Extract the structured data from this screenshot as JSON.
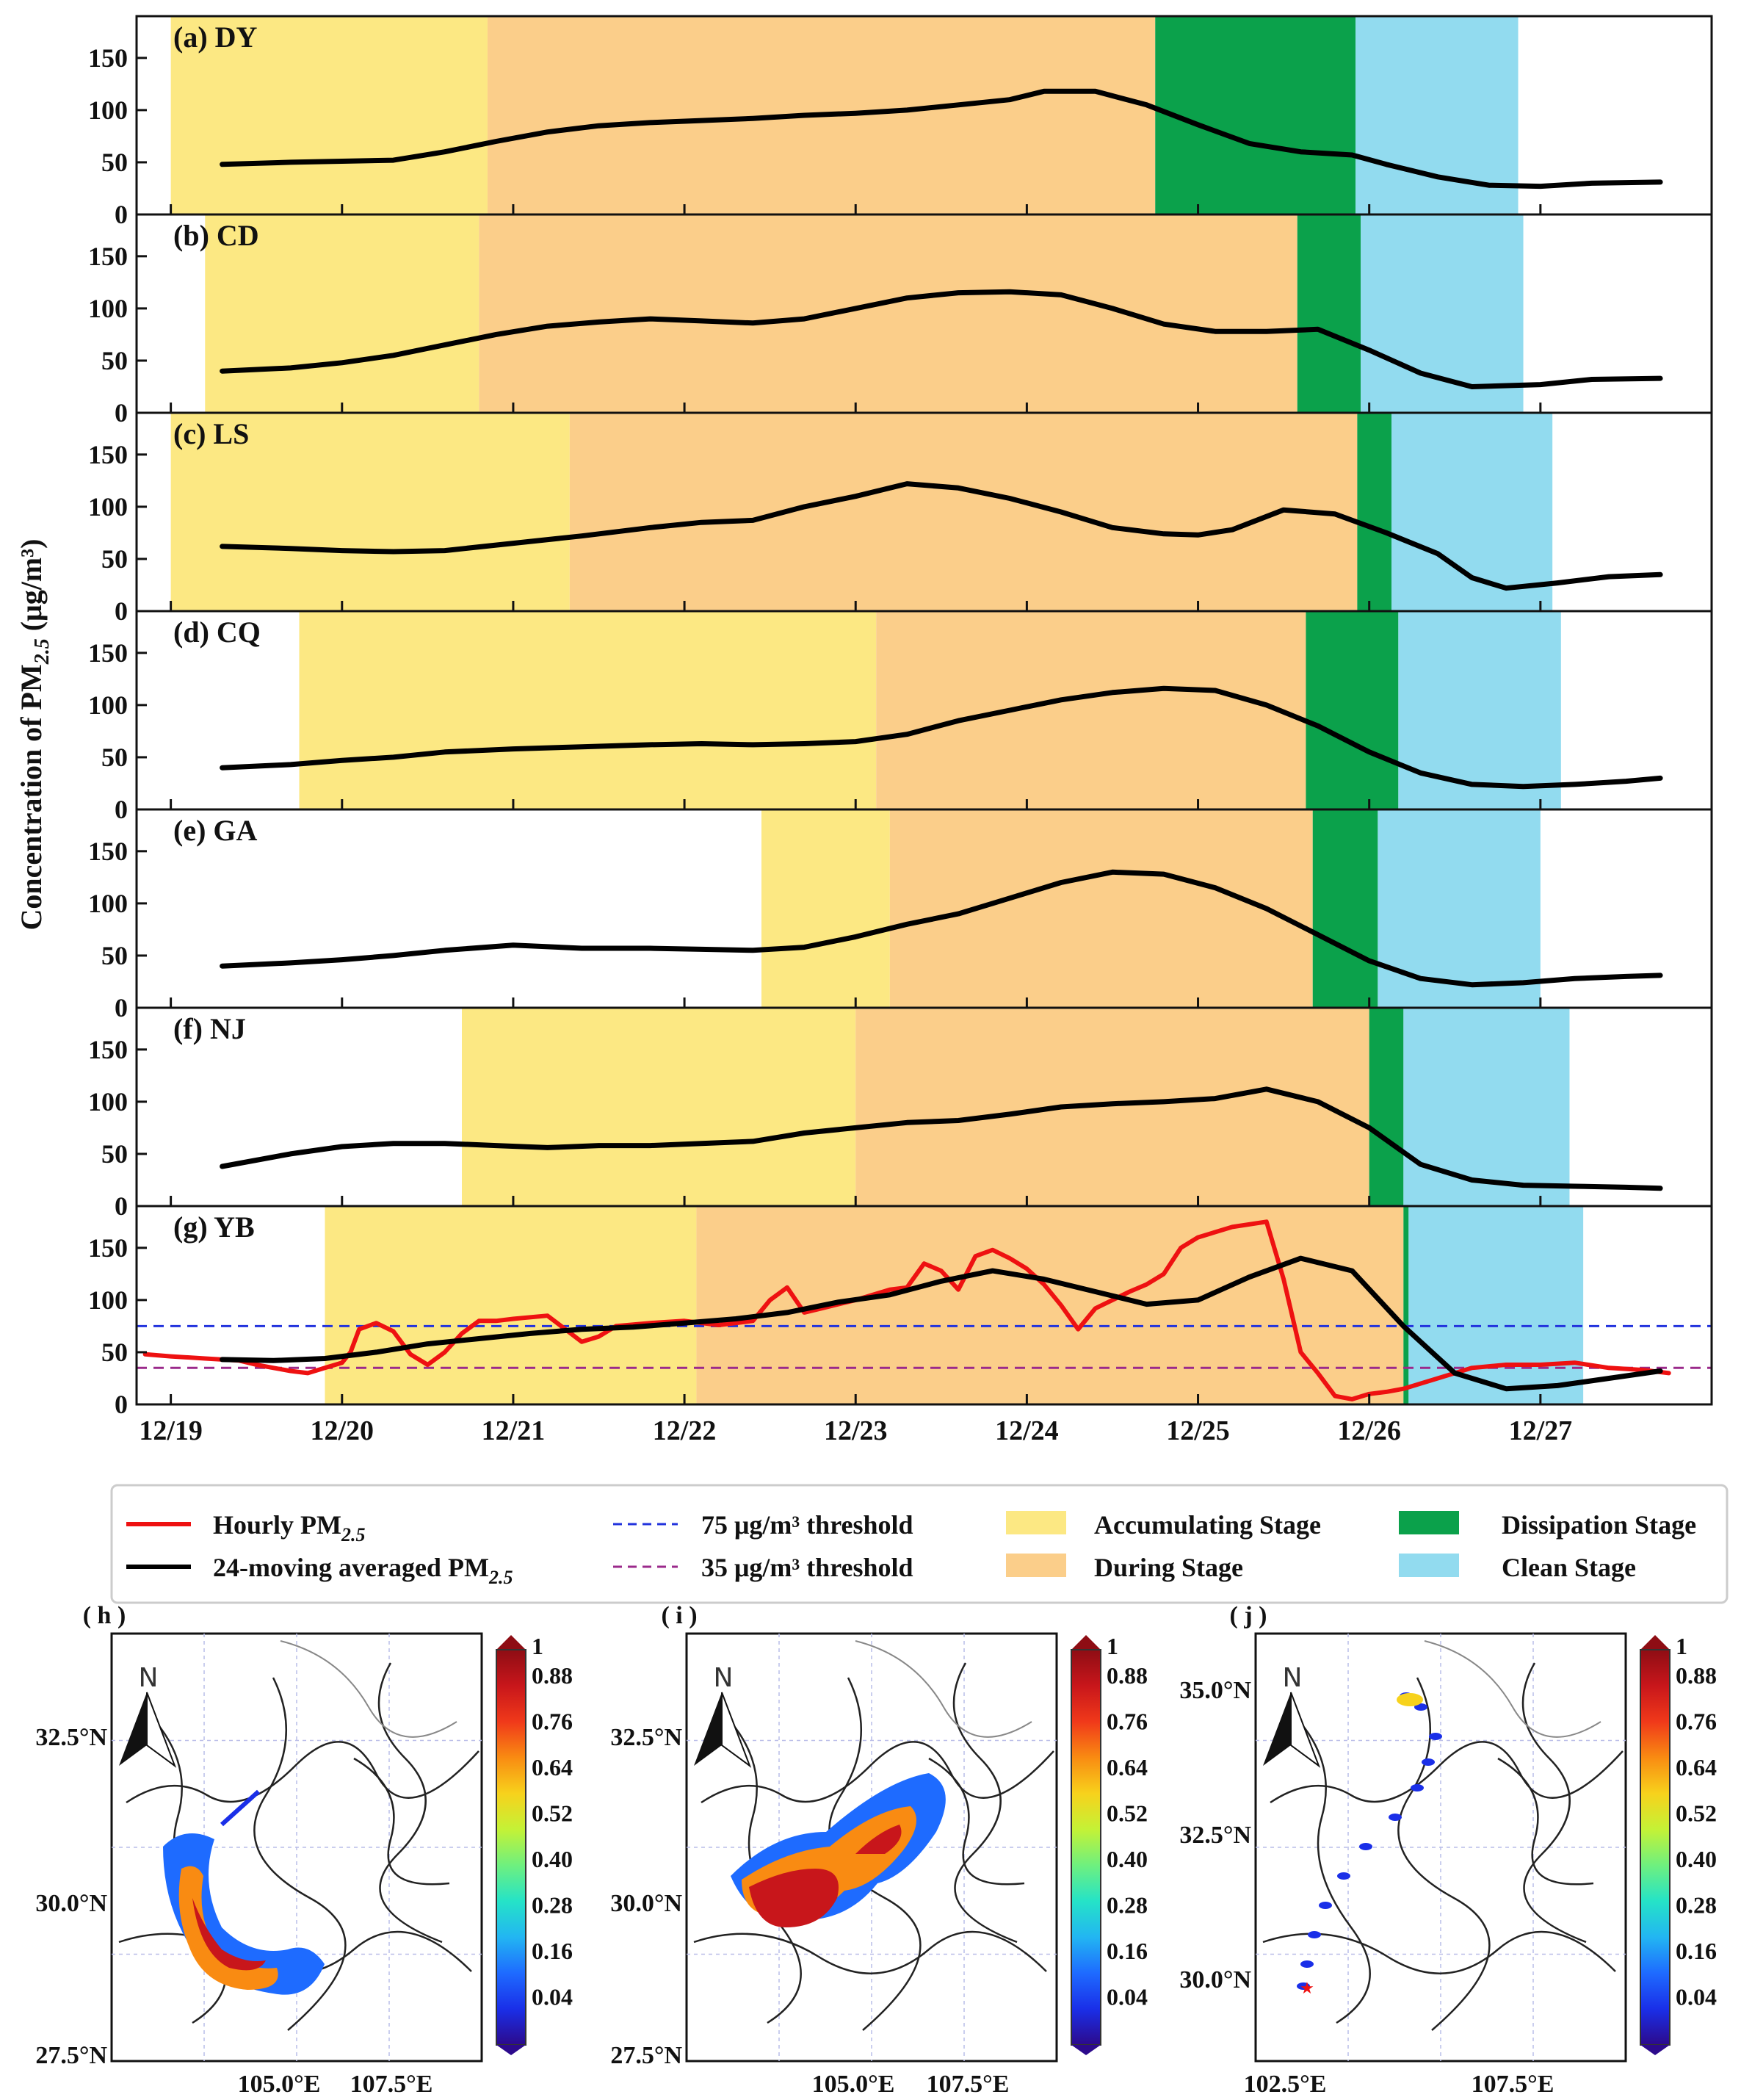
{
  "chart_data": [
    {
      "type": "line",
      "x_unit": "day index (0 = 12/19)",
      "xlim": [
        -0.2,
        9.0
      ],
      "ylim": [
        0,
        190
      ],
      "yticks": [
        0,
        50,
        100,
        150
      ],
      "xticks": [
        0,
        1,
        2,
        3,
        4,
        5,
        6,
        7,
        8
      ],
      "xtick_labels": [
        "12/19",
        "12/20",
        "12/21",
        "12/22",
        "12/23",
        "12/24",
        "12/25",
        "12/26",
        "12/27"
      ],
      "ylabel": "Concentration of PM",
      "ylabel_sub": "2.5",
      "ylabel_unit": " (μg/m³)",
      "stage_colors": {
        "accumulating": "#FCE883",
        "during": "#FBCE8A",
        "dissipation": "#0BA14B",
        "clean": "#92DBEF"
      },
      "thresholds": [
        {
          "value": 75,
          "color": "#2233DD",
          "label": "75 μg/m³ threshold"
        },
        {
          "value": 35,
          "color": "#9B2A8B",
          "label": "35 μg/m³ threshold"
        }
      ],
      "panels": [
        {
          "id": "a",
          "title": "(a) DY",
          "stages": {
            "accumulating": [
              0.0,
              1.85
            ],
            "during": [
              1.85,
              5.75
            ],
            "dissipation": [
              5.75,
              6.92
            ],
            "clean": [
              6.92,
              7.87
            ]
          },
          "series": [
            {
              "name": "24-moving averaged PM2.5",
              "color": "#000000",
              "x": [
                0.3,
                0.7,
                1.0,
                1.3,
                1.6,
                1.9,
                2.2,
                2.5,
                2.8,
                3.1,
                3.4,
                3.7,
                4.0,
                4.3,
                4.6,
                4.9,
                5.1,
                5.4,
                5.7,
                6.0,
                6.3,
                6.6,
                6.9,
                7.1,
                7.4,
                7.7,
                8.0,
                8.3,
                8.7
              ],
              "y": [
                48,
                50,
                51,
                52,
                60,
                70,
                79,
                85,
                88,
                90,
                92,
                95,
                97,
                100,
                105,
                110,
                118,
                118,
                105,
                86,
                68,
                60,
                57,
                48,
                36,
                28,
                27,
                30,
                31
              ]
            }
          ]
        },
        {
          "id": "b",
          "title": "(b) CD",
          "stages": {
            "accumulating": [
              0.2,
              1.8
            ],
            "during": [
              1.8,
              6.58
            ],
            "dissipation": [
              6.58,
              6.95
            ],
            "clean": [
              6.95,
              7.9
            ]
          },
          "series": [
            {
              "name": "24-moving averaged PM2.5",
              "color": "#000000",
              "x": [
                0.3,
                0.7,
                1.0,
                1.3,
                1.6,
                1.9,
                2.2,
                2.5,
                2.8,
                3.1,
                3.4,
                3.7,
                4.0,
                4.3,
                4.6,
                4.9,
                5.2,
                5.5,
                5.8,
                6.1,
                6.4,
                6.7,
                7.0,
                7.3,
                7.6,
                8.0,
                8.3,
                8.7
              ],
              "y": [
                40,
                43,
                48,
                55,
                65,
                75,
                83,
                87,
                90,
                88,
                86,
                90,
                100,
                110,
                115,
                116,
                113,
                100,
                85,
                78,
                78,
                80,
                60,
                38,
                25,
                27,
                32,
                33
              ]
            }
          ]
        },
        {
          "id": "c",
          "title": "(c) LS",
          "stages": {
            "accumulating": [
              0.0,
              2.33
            ],
            "during": [
              2.33,
              6.93
            ],
            "dissipation": [
              6.93,
              7.13
            ],
            "clean": [
              7.13,
              8.07
            ]
          },
          "series": [
            {
              "name": "24-moving averaged PM2.5",
              "color": "#000000",
              "x": [
                0.3,
                0.7,
                1.0,
                1.3,
                1.6,
                2.0,
                2.4,
                2.8,
                3.1,
                3.4,
                3.7,
                4.0,
                4.3,
                4.6,
                4.9,
                5.2,
                5.5,
                5.8,
                6.0,
                6.2,
                6.5,
                6.8,
                7.1,
                7.4,
                7.6,
                7.8,
                8.1,
                8.4,
                8.7
              ],
              "y": [
                62,
                60,
                58,
                57,
                58,
                65,
                72,
                80,
                85,
                87,
                100,
                110,
                122,
                118,
                108,
                95,
                80,
                74,
                73,
                78,
                97,
                93,
                75,
                55,
                32,
                22,
                27,
                33,
                35
              ]
            }
          ]
        },
        {
          "id": "d",
          "title": "(d) CQ",
          "stages": {
            "accumulating": [
              0.75,
              4.12
            ],
            "during": [
              4.12,
              6.63
            ],
            "dissipation": [
              6.63,
              7.17
            ],
            "clean": [
              7.17,
              8.12
            ]
          },
          "series": [
            {
              "name": "24-moving averaged PM2.5",
              "color": "#000000",
              "x": [
                0.3,
                0.7,
                1.0,
                1.3,
                1.6,
                2.0,
                2.4,
                2.8,
                3.1,
                3.4,
                3.7,
                4.0,
                4.3,
                4.6,
                4.9,
                5.2,
                5.5,
                5.8,
                6.1,
                6.4,
                6.7,
                7.0,
                7.3,
                7.6,
                7.9,
                8.2,
                8.5,
                8.7
              ],
              "y": [
                40,
                43,
                47,
                50,
                55,
                58,
                60,
                62,
                63,
                62,
                63,
                65,
                72,
                85,
                95,
                105,
                112,
                116,
                114,
                100,
                80,
                55,
                35,
                24,
                22,
                24,
                27,
                30
              ]
            }
          ]
        },
        {
          "id": "e",
          "title": "(e) GA",
          "stages": {
            "accumulating": [
              3.45,
              4.2
            ],
            "during": [
              4.2,
              6.67
            ],
            "dissipation": [
              6.67,
              7.05
            ],
            "clean": [
              7.05,
              8.0
            ]
          },
          "series": [
            {
              "name": "24-moving averaged PM2.5",
              "color": "#000000",
              "x": [
                0.3,
                0.7,
                1.0,
                1.3,
                1.6,
                2.0,
                2.4,
                2.8,
                3.1,
                3.4,
                3.7,
                4.0,
                4.3,
                4.6,
                4.9,
                5.2,
                5.5,
                5.8,
                6.1,
                6.4,
                6.7,
                7.0,
                7.3,
                7.6,
                7.9,
                8.2,
                8.5,
                8.7
              ],
              "y": [
                40,
                43,
                46,
                50,
                55,
                60,
                57,
                57,
                56,
                55,
                58,
                68,
                80,
                90,
                105,
                120,
                130,
                128,
                115,
                95,
                70,
                45,
                28,
                22,
                24,
                28,
                30,
                31
              ]
            }
          ]
        },
        {
          "id": "f",
          "title": "(f) NJ",
          "stages": {
            "accumulating": [
              1.7,
              4.0
            ],
            "during": [
              4.0,
              7.0
            ],
            "dissipation": [
              7.0,
              7.2
            ],
            "clean": [
              7.2,
              8.17
            ]
          },
          "series": [
            {
              "name": "24-moving averaged PM2.5",
              "color": "#000000",
              "x": [
                0.3,
                0.7,
                1.0,
                1.3,
                1.6,
                1.9,
                2.2,
                2.5,
                2.8,
                3.1,
                3.4,
                3.7,
                4.0,
                4.3,
                4.6,
                4.9,
                5.2,
                5.5,
                5.8,
                6.1,
                6.4,
                6.7,
                7.0,
                7.3,
                7.6,
                7.9,
                8.2,
                8.5,
                8.7
              ],
              "y": [
                38,
                50,
                57,
                60,
                60,
                58,
                56,
                58,
                58,
                60,
                62,
                70,
                75,
                80,
                82,
                88,
                95,
                98,
                100,
                103,
                112,
                100,
                75,
                40,
                25,
                20,
                19,
                18,
                17
              ]
            }
          ]
        },
        {
          "id": "g",
          "title": "(g) YB",
          "stages": {
            "accumulating": [
              0.9,
              3.07
            ],
            "during": [
              3.07,
              7.2
            ],
            "dissipation": [
              7.2,
              7.23
            ],
            "clean": [
              7.23,
              8.25
            ]
          },
          "series": [
            {
              "name": "Hourly PM2.5",
              "color": "#EE1111",
              "x": [
                -0.15,
                0.0,
                0.2,
                0.4,
                0.5,
                0.6,
                0.7,
                0.8,
                0.9,
                1.0,
                1.05,
                1.1,
                1.2,
                1.3,
                1.4,
                1.5,
                1.6,
                1.7,
                1.8,
                1.9,
                2.0,
                2.2,
                2.4,
                2.5,
                2.6,
                2.8,
                3.0,
                3.2,
                3.4,
                3.5,
                3.6,
                3.7,
                3.8,
                4.0,
                4.2,
                4.3,
                4.4,
                4.5,
                4.6,
                4.7,
                4.8,
                4.9,
                5.0,
                5.1,
                5.2,
                5.3,
                5.4,
                5.5,
                5.6,
                5.7,
                5.8,
                5.9,
                6.0,
                6.2,
                6.4,
                6.5,
                6.6,
                6.7,
                6.8,
                6.9,
                7.0,
                7.1,
                7.2,
                7.3,
                7.4,
                7.6,
                7.8,
                8.0,
                8.2,
                8.4,
                8.6,
                8.75
              ],
              "y": [
                48,
                46,
                44,
                42,
                38,
                35,
                32,
                30,
                35,
                40,
                50,
                72,
                78,
                70,
                48,
                38,
                50,
                68,
                80,
                80,
                82,
                85,
                60,
                65,
                75,
                78,
                80,
                76,
                80,
                100,
                112,
                88,
                92,
                100,
                110,
                112,
                135,
                128,
                110,
                142,
                148,
                140,
                130,
                115,
                95,
                72,
                92,
                100,
                108,
                115,
                125,
                150,
                160,
                170,
                175,
                120,
                50,
                30,
                8,
                5,
                10,
                12,
                15,
                20,
                25,
                35,
                38,
                38,
                40,
                35,
                33,
                30
              ]
            },
            {
              "name": "24-moving averaged PM2.5",
              "color": "#000000",
              "x": [
                0.3,
                0.6,
                0.9,
                1.2,
                1.5,
                1.8,
                2.1,
                2.4,
                2.7,
                3.0,
                3.3,
                3.6,
                3.9,
                4.2,
                4.5,
                4.8,
                5.1,
                5.4,
                5.7,
                6.0,
                6.3,
                6.6,
                6.9,
                7.2,
                7.5,
                7.8,
                8.1,
                8.4,
                8.7
              ],
              "y": [
                43,
                42,
                44,
                50,
                58,
                63,
                68,
                72,
                74,
                78,
                82,
                88,
                98,
                105,
                118,
                128,
                120,
                108,
                96,
                100,
                122,
                140,
                128,
                75,
                30,
                15,
                18,
                25,
                32
              ]
            }
          ]
        }
      ],
      "legend": [
        {
          "label": "Hourly PM",
          "sub": "2.5",
          "kind": "line",
          "color": "#EE1111"
        },
        {
          "label": "24-moving averaged PM",
          "sub": "2.5",
          "kind": "line",
          "color": "#000000"
        },
        {
          "label": "75 μg/m³ threshold",
          "kind": "dash",
          "color": "#2233DD"
        },
        {
          "label": "35 μg/m³ threshold",
          "kind": "dash",
          "color": "#9B2A8B"
        },
        {
          "label": "Accumulating Stage",
          "kind": "box",
          "color": "#FCE883"
        },
        {
          "label": "During Stage",
          "kind": "box",
          "color": "#FBCE8A"
        },
        {
          "label": "Dissipation Stage",
          "kind": "box",
          "color": "#0BA14B"
        },
        {
          "label": "Clean Stage",
          "kind": "box",
          "color": "#92DBEF"
        }
      ]
    },
    {
      "type": "heatmap",
      "description_label": "map panels",
      "colorbar_ticks": [
        "1",
        "0.88",
        "0.76",
        "0.64",
        "0.52",
        "0.40",
        "0.28",
        "0.16",
        "0.04"
      ],
      "colorbar_colors": [
        "#2C0A8C",
        "#1A2FE8",
        "#1E6BFF",
        "#22B6F2",
        "#25E3C7",
        "#6FF07E",
        "#C4F236",
        "#F7D21C",
        "#F98B12",
        "#F0391A",
        "#C8161B",
        "#8E0D14"
      ],
      "maps": [
        {
          "id": "h",
          "title": "( h )",
          "lat_labels": [
            "32.5°N",
            "30.0°N",
            "27.5°N"
          ],
          "lon_labels": [
            "105.0°E",
            "107.5°E"
          ],
          "north": "N"
        },
        {
          "id": "i",
          "title": "( i )",
          "lat_labels": [
            "32.5°N",
            "30.0°N",
            "27.5°N"
          ],
          "lon_labels": [
            "105.0°E",
            "107.5°E"
          ],
          "north": "N"
        },
        {
          "id": "j",
          "title": "( j )",
          "lat_labels": [
            "35.0°N",
            "32.5°N",
            "30.0°N"
          ],
          "lon_labels": [
            "102.5°E",
            "107.5°E"
          ],
          "north": "N"
        }
      ]
    }
  ]
}
